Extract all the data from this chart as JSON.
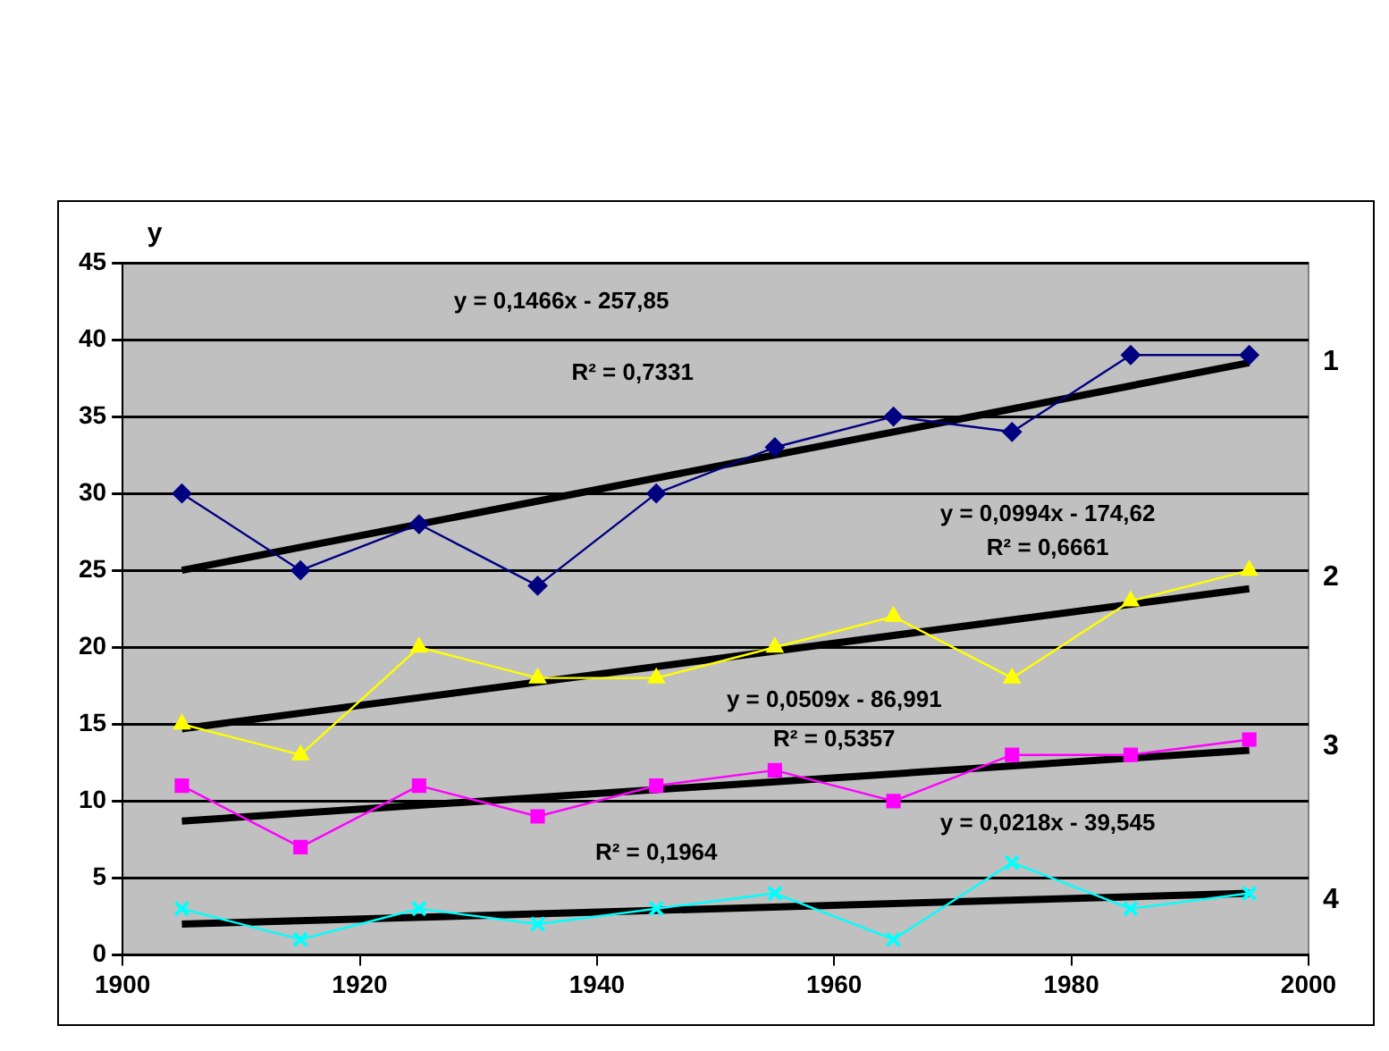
{
  "chart_data": {
    "type": "line",
    "ylabel": "y",
    "x": [
      1905,
      1915,
      1925,
      1935,
      1945,
      1955,
      1965,
      1975,
      1985,
      1995
    ],
    "series": [
      {
        "name": "1",
        "color": "#000080",
        "marker": "diamond",
        "values": [
          30,
          25,
          28,
          24,
          30,
          33,
          35,
          34,
          39,
          39
        ]
      },
      {
        "name": "2",
        "color": "#ffff00",
        "marker": "triangle",
        "values": [
          15,
          13,
          20,
          18,
          18,
          20,
          22,
          18,
          23,
          25
        ]
      },
      {
        "name": "3",
        "color": "#ff00ff",
        "marker": "square",
        "values": [
          11,
          7,
          11,
          9,
          11,
          12,
          10,
          13,
          13,
          14
        ]
      },
      {
        "name": "4",
        "color": "#00ffff",
        "marker": "cross",
        "values": [
          3,
          1,
          3,
          2,
          3,
          4,
          1,
          6,
          3,
          4
        ]
      },
      {
        "type": "line",
        "color": "#000000",
        "marker": "none",
        "values": [
          25,
          null,
          null,
          null,
          null,
          null,
          null,
          null,
          null,
          38.5
        ]
      },
      {
        "type": "line",
        "color": "#000000",
        "marker": "none",
        "values": [
          14.7,
          null,
          null,
          null,
          null,
          null,
          null,
          null,
          null,
          23.8
        ]
      },
      {
        "type": "line",
        "color": "#000000",
        "marker": "none",
        "values": [
          8.7,
          null,
          null,
          null,
          null,
          null,
          null,
          null,
          null,
          13.3
        ]
      },
      {
        "type": "line",
        "color": "#000000",
        "marker": "none",
        "values": [
          2,
          null,
          null,
          null,
          null,
          null,
          null,
          null,
          null,
          4
        ]
      }
    ],
    "annotations": [
      "y = 0,1466x - 257,85",
      "R² = 0,7331",
      "y = 0,0994x - 174,62",
      "R² = 0,6661",
      "y = 0,0509x - 86,991",
      "R² = 0,5357",
      "y = 0,0218x - 39,545",
      "R² = 0,1964"
    ],
    "xlim": [
      1900,
      2000
    ],
    "xticks": [
      1900,
      1920,
      1940,
      1960,
      1980,
      2000
    ],
    "ylim": [
      0,
      45
    ],
    "yticks": [
      0,
      5,
      10,
      15,
      20,
      25,
      30,
      35,
      40,
      45
    ],
    "grid": "y",
    "legend": false
  }
}
